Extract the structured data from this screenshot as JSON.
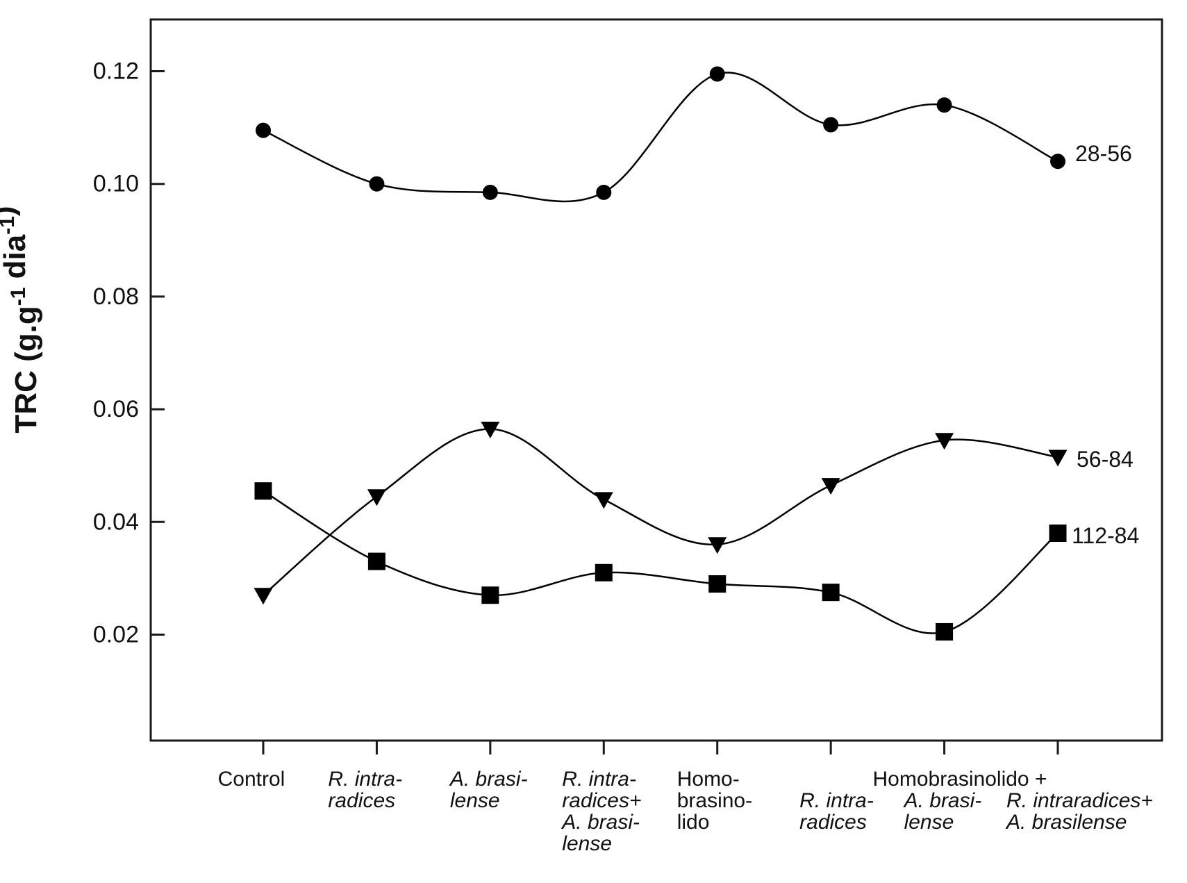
{
  "chart_data": {
    "type": "line",
    "title": "",
    "ylabel_parts": {
      "prefix": "TRC (g.g",
      "sup1": "-1",
      "mid": " dia",
      "sup2": "-1",
      "suffix": ")"
    },
    "ylabel_text": "TRC (g.g-1 dia-1)",
    "xlabel": "",
    "y_tick_values": [
      0.02,
      0.04,
      0.06,
      0.08,
      0.1,
      0.12
    ],
    "y_tick_labels": [
      "0.02",
      "0.04",
      "0.06",
      "0.08",
      "0.10",
      "0.12"
    ],
    "ylim": [
      0.001,
      0.129
    ],
    "grid": false,
    "legend_position": "end-of-line-labels",
    "categories": [
      {
        "lines": [
          "Control"
        ],
        "italic": false,
        "row2": false
      },
      {
        "lines": [
          "R. intra-",
          "radices"
        ],
        "italic": true,
        "row2": false
      },
      {
        "lines": [
          "A. brasi-",
          "lense"
        ],
        "italic": true,
        "row2": false
      },
      {
        "lines": [
          "R. intra-",
          "radices+",
          "A. brasi-",
          "lense"
        ],
        "italic": true,
        "row2": false
      },
      {
        "lines": [
          "Homo-",
          "brasino-",
          "lido"
        ],
        "italic": false,
        "row2": false
      },
      {
        "lines": [
          "R. intra-",
          "radices"
        ],
        "italic": true,
        "row2": true
      },
      {
        "lines": [
          "A. brasi-",
          "lense"
        ],
        "italic": true,
        "row2": true
      },
      {
        "lines": [
          "R. intraradices+",
          "A. brasilense"
        ],
        "italic": true,
        "row2": true
      }
    ],
    "group_header": {
      "label": "Homobrasinolido +",
      "span_categories": [
        6,
        7,
        8
      ]
    },
    "series": [
      {
        "name": "28-56",
        "marker": "circle",
        "values": [
          0.1095,
          0.1,
          0.0985,
          0.0985,
          0.1195,
          0.1105,
          0.114,
          0.104
        ]
      },
      {
        "name": "56-84",
        "marker": "triangle-down",
        "values": [
          0.027,
          0.0445,
          0.0565,
          0.044,
          0.036,
          0.0465,
          0.0545,
          0.0515
        ]
      },
      {
        "name": "112-84",
        "marker": "square",
        "values": [
          0.0455,
          0.033,
          0.027,
          0.031,
          0.029,
          0.0275,
          0.0205,
          0.038
        ]
      }
    ],
    "colors": {
      "line": "#000000",
      "marker": "#000000",
      "text": "#111111",
      "axis": "#1a1a1a",
      "background": "#ffffff"
    }
  }
}
